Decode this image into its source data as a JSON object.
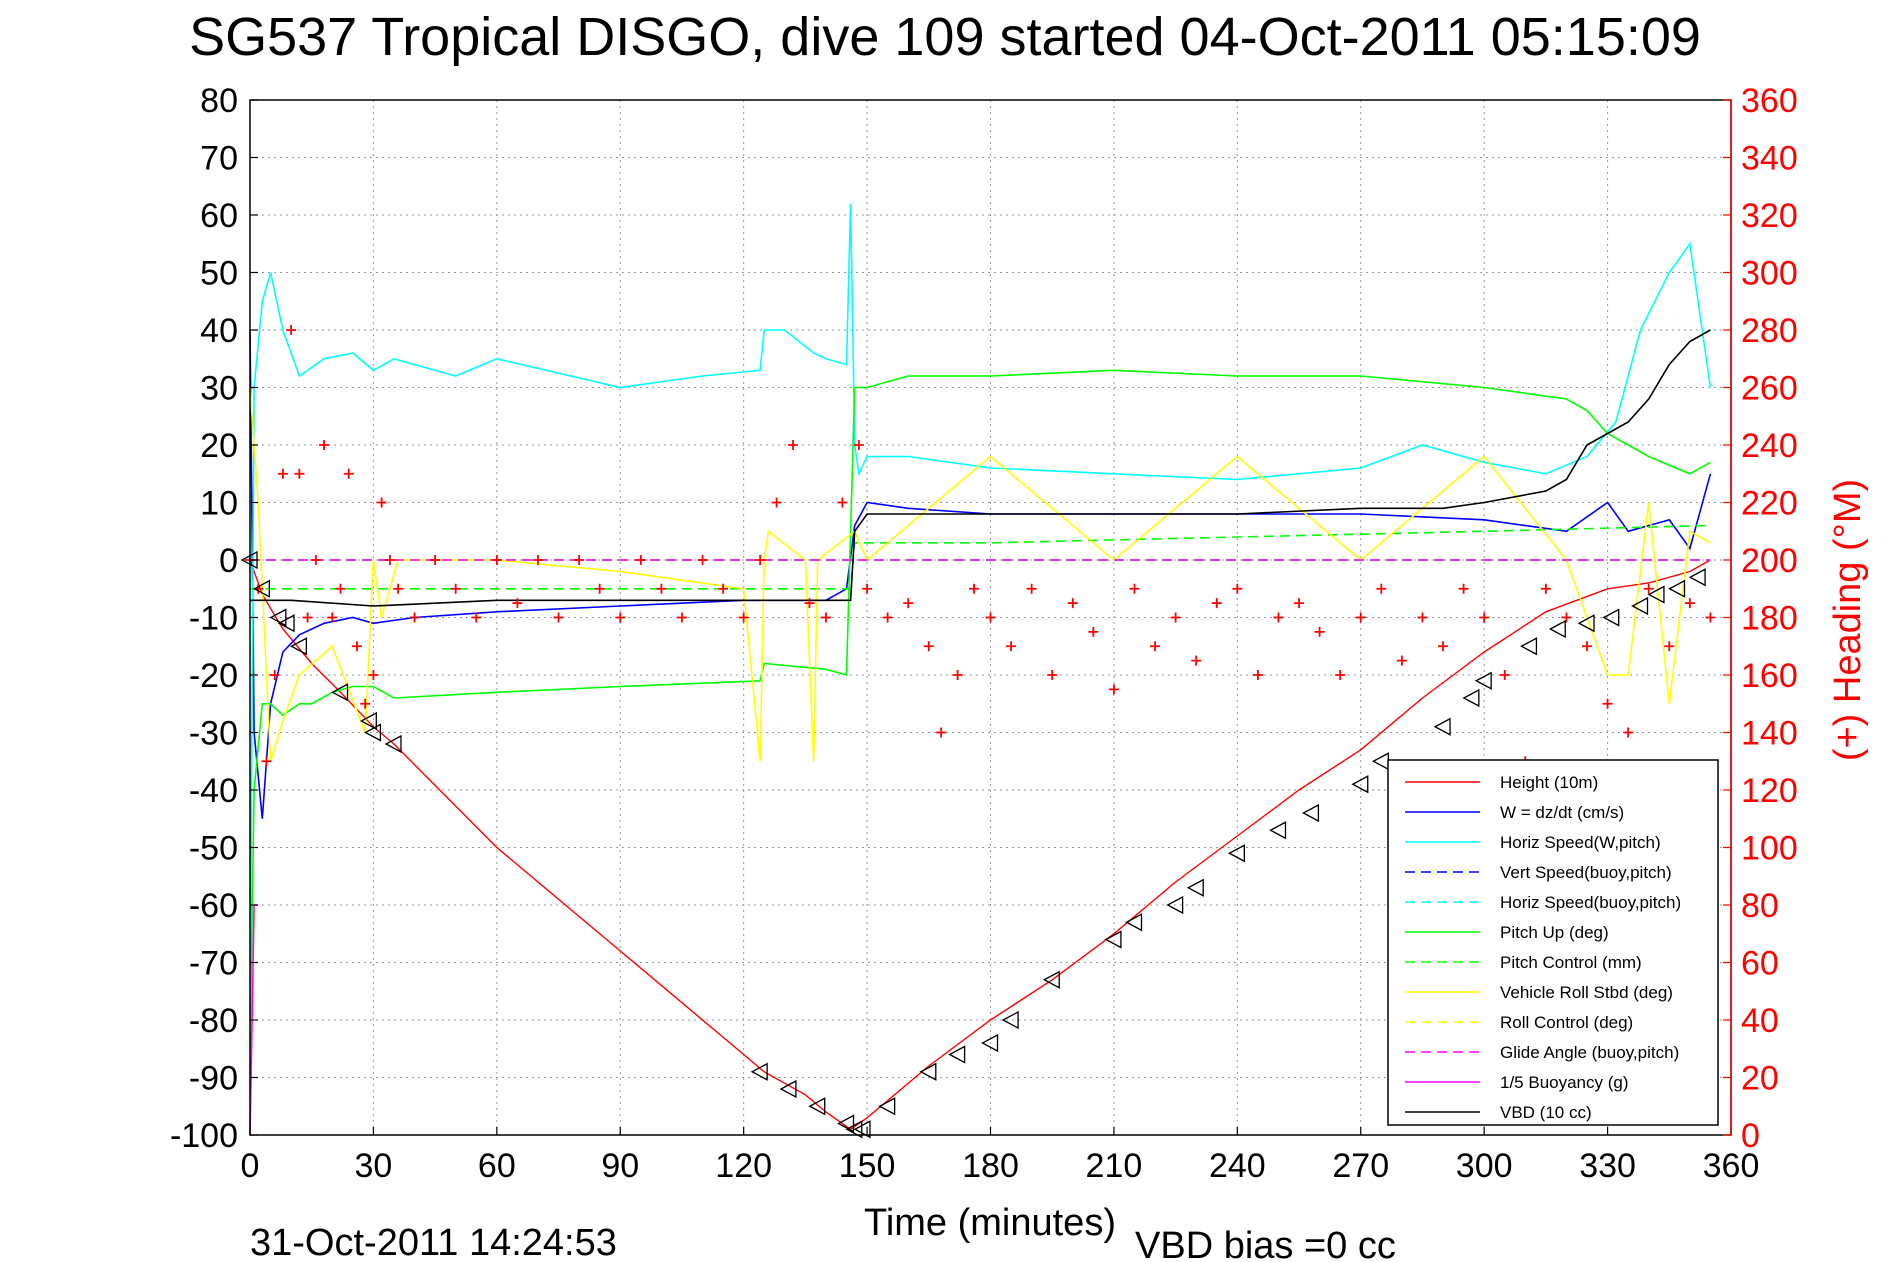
{
  "chart_data": {
    "type": "line",
    "title": "SG537 Tropical DISGO, dive 109 started 04-Oct-2011 05:15:09",
    "xlabel": "Time (minutes)",
    "ylabel_right": "(+) Heading (°M)",
    "footer_date": "31-Oct-2011 14:24:53",
    "footer_vbd": "VBD bias =0 cc",
    "xlim": [
      0,
      360
    ],
    "ylim": [
      -100,
      80
    ],
    "ylim_right": [
      0,
      360
    ],
    "xticks": [
      "0",
      "30",
      "60",
      "90",
      "120",
      "150",
      "180",
      "210",
      "240",
      "270",
      "300",
      "330",
      "360"
    ],
    "yticks": [
      "80",
      "70",
      "60",
      "50",
      "40",
      "30",
      "20",
      "10",
      "0",
      "-10",
      "-20",
      "-30",
      "-40",
      "-50",
      "-60",
      "-70",
      "-80",
      "-90",
      "-100"
    ],
    "yticks_right": [
      "360",
      "340",
      "320",
      "300",
      "280",
      "260",
      "240",
      "220",
      "200",
      "180",
      "160",
      "140",
      "120",
      "100",
      "80",
      "60",
      "40",
      "20",
      "0"
    ],
    "grid": true,
    "legend_position": "lower-right",
    "series": [
      {
        "name": "Height (10m)",
        "color": "#ff0000",
        "style": "solid",
        "x": [
          0,
          3,
          8,
          15,
          22,
          30,
          35,
          60,
          90,
          120,
          125,
          135,
          140,
          146,
          150,
          155,
          165,
          180,
          195,
          210,
          225,
          240,
          255,
          270,
          285,
          300,
          315,
          330,
          340,
          350,
          355
        ],
        "y": [
          0,
          -6,
          -12,
          -18,
          -23,
          -29,
          -32,
          -50,
          -68,
          -86,
          -89,
          -93,
          -96,
          -99,
          -97,
          -94,
          -88,
          -80,
          -73,
          -65,
          -56,
          -48,
          -40,
          -33,
          -24,
          -16,
          -9,
          -5,
          -4,
          -2,
          0
        ]
      },
      {
        "name": "W = dz/dt (cm/s)",
        "color": "#0000ff",
        "style": "solid",
        "x": [
          0,
          1,
          3,
          5,
          8,
          12,
          18,
          25,
          30,
          40,
          60,
          90,
          120,
          140,
          145,
          147,
          150,
          160,
          180,
          210,
          240,
          270,
          300,
          320,
          330,
          335,
          345,
          350,
          355
        ],
        "y": [
          40,
          -30,
          -45,
          -25,
          -16,
          -13,
          -11,
          -10,
          -11,
          -10,
          -9,
          -8,
          -7,
          -7,
          -5,
          6,
          10,
          9,
          8,
          8,
          8,
          8,
          7,
          5,
          10,
          5,
          7,
          2,
          15
        ]
      },
      {
        "name": "Horiz Speed(W,pitch)",
        "color": "#00ffff",
        "style": "solid",
        "x": [
          0,
          1,
          3,
          5,
          8,
          12,
          18,
          25,
          30,
          35,
          50,
          60,
          90,
          110,
          124,
          125,
          130,
          137,
          140,
          145,
          146,
          147,
          148,
          150,
          160,
          180,
          210,
          240,
          270,
          285,
          300,
          315,
          325,
          332,
          338,
          345,
          350,
          355
        ],
        "y": [
          -80,
          30,
          45,
          50,
          40,
          32,
          35,
          36,
          33,
          35,
          32,
          35,
          30,
          32,
          33,
          40,
          40,
          36,
          35,
          34,
          62,
          20,
          15,
          18,
          18,
          16,
          15,
          14,
          16,
          20,
          17,
          15,
          18,
          24,
          40,
          50,
          55,
          30
        ]
      },
      {
        "name": "Vert Speed(buoy,pitch)",
        "color": "#0000ff",
        "style": "dashed",
        "x": [
          0,
          147,
          355
        ],
        "y": [
          0,
          0,
          0
        ]
      },
      {
        "name": "Horiz Speed(buoy,pitch)",
        "color": "#00ffff",
        "style": "dashed",
        "x": [
          0,
          147,
          355
        ],
        "y": [
          0,
          0,
          0
        ]
      },
      {
        "name": "Pitch Up (deg)",
        "color": "#00ff00",
        "style": "solid",
        "x": [
          0,
          1,
          3,
          5,
          8,
          12,
          15,
          20,
          25,
          30,
          35,
          60,
          90,
          124,
          125,
          140,
          145,
          147,
          148,
          150,
          160,
          180,
          210,
          240,
          270,
          300,
          320,
          325,
          330,
          340,
          350,
          355
        ],
        "y": [
          -85,
          -40,
          -25,
          -25,
          -27,
          -25,
          -25,
          -23,
          -22,
          -22,
          -24,
          -23,
          -22,
          -21,
          -18,
          -19,
          -20,
          30,
          30,
          30,
          32,
          32,
          33,
          32,
          32,
          30,
          28,
          26,
          22,
          18,
          15,
          17
        ]
      },
      {
        "name": "Pitch Control (mm)",
        "color": "#00ff00",
        "style": "dashed",
        "x": [
          0,
          146,
          147,
          180,
          240,
          300,
          355
        ],
        "y": [
          -5,
          -5,
          3,
          3,
          4,
          5,
          6
        ]
      },
      {
        "name": "Vehicle Roll Stbd (deg)",
        "color": "#ffff00",
        "style": "solid",
        "x": [
          0,
          2,
          5,
          8,
          12,
          20,
          28,
          30,
          32,
          36,
          60,
          90,
          120,
          124,
          125,
          126,
          135,
          137,
          138,
          147,
          150,
          180,
          210,
          240,
          270,
          300,
          320,
          330,
          335,
          340,
          345,
          350,
          355
        ],
        "y": [
          30,
          10,
          -35,
          -28,
          -20,
          -15,
          -30,
          0,
          -10,
          0,
          0,
          -2,
          -5,
          -35,
          0,
          5,
          0,
          -35,
          0,
          5,
          0,
          18,
          0,
          18,
          0,
          18,
          0,
          -20,
          -20,
          10,
          -25,
          5,
          3
        ]
      },
      {
        "name": "Roll Control (deg)",
        "color": "#ffff00",
        "style": "dashed",
        "x": [
          0,
          355
        ],
        "y": [
          0,
          0
        ]
      },
      {
        "name": "Glide Angle (buoy,pitch)",
        "color": "#ff00ff",
        "style": "dashed",
        "x": [
          0,
          355
        ],
        "y": [
          0,
          0
        ]
      },
      {
        "name": "1/5 Buoyancy (g)",
        "color": "#ff00ff",
        "style": "solid",
        "x": [
          0,
          0.5,
          1,
          2
        ],
        "y": [
          -100,
          -80,
          -60,
          -60
        ]
      },
      {
        "name": "VBD (10 cc)",
        "color": "#000000",
        "style": "solid",
        "x": [
          0,
          1,
          5,
          10,
          30,
          60,
          90,
          120,
          140,
          146,
          147,
          150,
          180,
          210,
          240,
          270,
          290,
          300,
          315,
          320,
          325,
          330,
          335,
          340,
          345,
          350,
          355
        ],
        "y": [
          -7,
          -7,
          -7,
          -7,
          -8,
          -7,
          -7,
          -7,
          -7,
          -7,
          5,
          8,
          8,
          8,
          8,
          9,
          9,
          10,
          12,
          14,
          20,
          22,
          24,
          28,
          34,
          38,
          40
        ]
      }
    ],
    "heading_series": {
      "name": "(+) Heading (°M)",
      "color": "#ff0000",
      "marker": "+",
      "x": [
        0,
        2,
        4,
        6,
        8,
        10,
        12,
        14,
        16,
        18,
        20,
        22,
        24,
        26,
        28,
        30,
        32,
        34,
        36,
        40,
        45,
        50,
        55,
        60,
        65,
        70,
        75,
        80,
        85,
        90,
        95,
        100,
        105,
        110,
        115,
        120,
        124,
        128,
        132,
        136,
        140,
        144,
        148,
        150,
        155,
        160,
        165,
        168,
        172,
        176,
        180,
        185,
        190,
        195,
        200,
        205,
        210,
        215,
        220,
        225,
        230,
        235,
        240,
        245,
        250,
        255,
        260,
        265,
        270,
        275,
        280,
        285,
        290,
        295,
        300,
        305,
        310,
        315,
        320,
        325,
        330,
        335,
        340,
        345,
        350,
        355
      ],
      "y": [
        200,
        190,
        130,
        160,
        230,
        280,
        230,
        180,
        200,
        240,
        180,
        190,
        230,
        170,
        150,
        160,
        220,
        200,
        190,
        180,
        200,
        190,
        180,
        200,
        185,
        200,
        180,
        200,
        190,
        180,
        200,
        190,
        180,
        200,
        190,
        180,
        200,
        220,
        240,
        185,
        180,
        220,
        240,
        190,
        180,
        185,
        170,
        140,
        160,
        190,
        180,
        170,
        190,
        160,
        185,
        175,
        155,
        190,
        170,
        180,
        165,
        185,
        190,
        160,
        180,
        185,
        175,
        160,
        180,
        190,
        165,
        180,
        170,
        190,
        180,
        160,
        130,
        190,
        180,
        170,
        150,
        140,
        190,
        170,
        185,
        180
      ]
    },
    "depth_markers": {
      "color": "#000000",
      "marker": "triangle",
      "x": [
        0,
        3,
        7,
        9,
        12,
        22,
        29,
        30,
        35,
        124,
        131,
        138,
        145,
        147,
        149,
        155,
        165,
        172,
        180,
        185,
        195,
        210,
        215,
        225,
        230,
        240,
        250,
        258,
        270,
        275,
        290,
        297,
        300,
        311,
        318,
        325,
        331,
        338,
        342,
        347,
        352
      ],
      "y": [
        0,
        -5,
        -10,
        -11,
        -15,
        -23,
        -28,
        -30,
        -32,
        -89,
        -92,
        -95,
        -98,
        -99,
        -99,
        -95,
        -89,
        -86,
        -84,
        -80,
        -73,
        -66,
        -63,
        -60,
        -57,
        -51,
        -47,
        -44,
        -39,
        -35,
        -29,
        -24,
        -21,
        -15,
        -12,
        -11,
        -10,
        -8,
        -6,
        -5,
        -3
      ]
    }
  }
}
